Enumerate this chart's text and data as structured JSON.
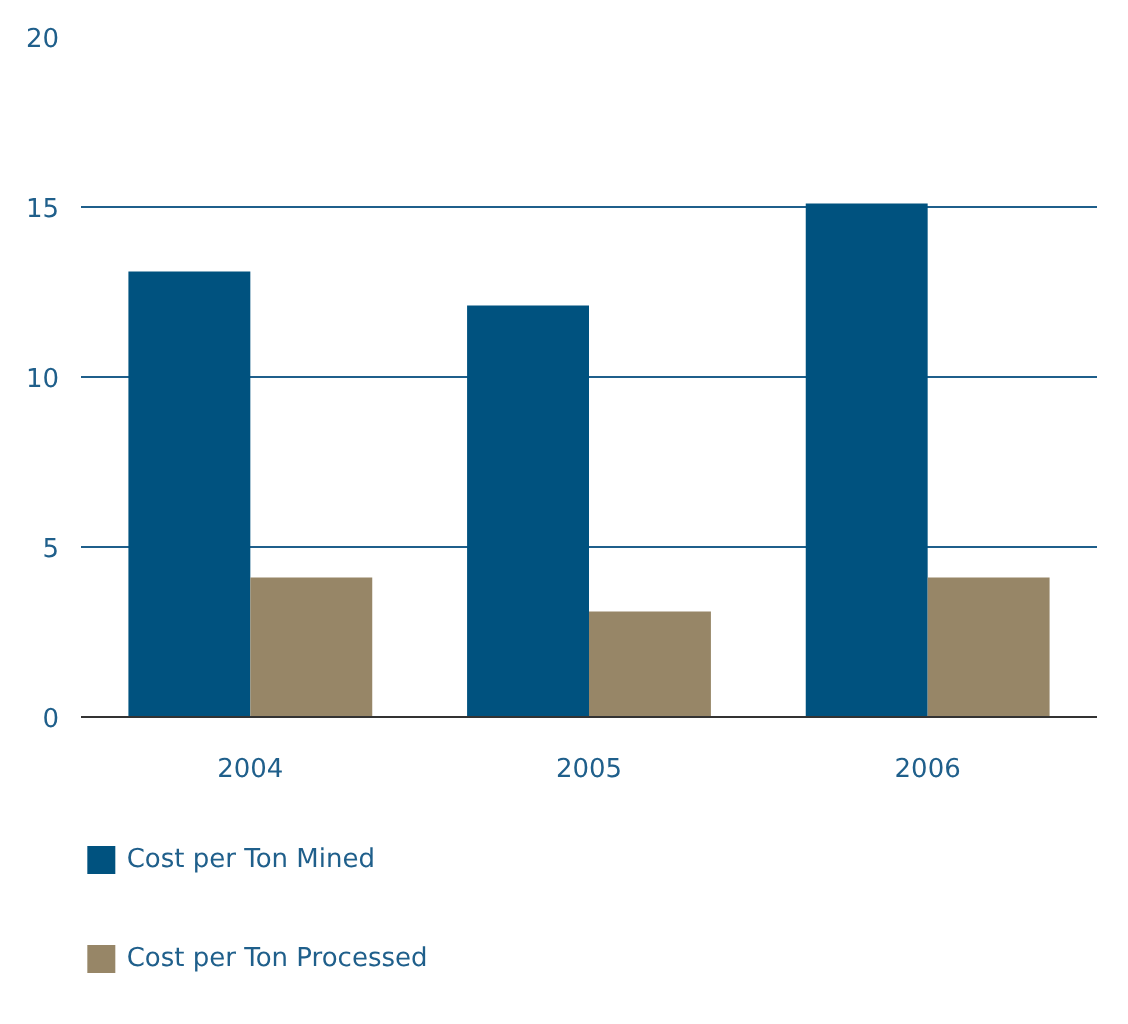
{
  "chart_data": {
    "type": "bar",
    "categories": [
      "2004",
      "2005",
      "2006"
    ],
    "series": [
      {
        "name": "Cost per Ton Mined",
        "color": "#00527f",
        "values": [
          13.1,
          12.1,
          15.1
        ]
      },
      {
        "name": "Cost per Ton Processed",
        "color": "#978667",
        "values": [
          4.1,
          3.1,
          4.1
        ]
      }
    ],
    "ylim": [
      0,
      20
    ],
    "yticks": [
      0,
      5,
      10,
      15,
      20
    ],
    "grid": "y",
    "legend": "bottom"
  }
}
